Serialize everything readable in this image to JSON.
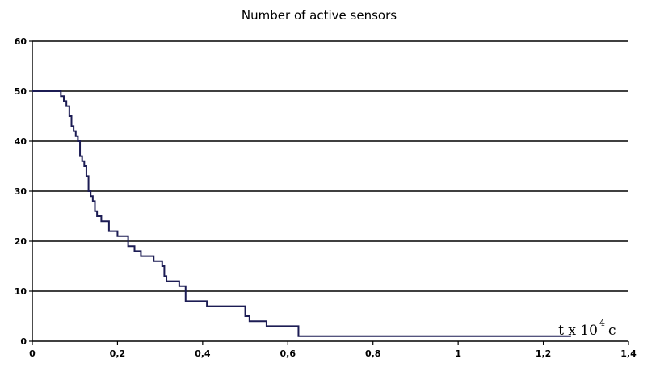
{
  "chart_data": {
    "type": "line",
    "title": "Number of active sensors",
    "xlabel": {
      "prefix": "t x 10",
      "superscript": "4",
      "suffix": "c"
    },
    "ylabel": "",
    "xlim": [
      0,
      1.4
    ],
    "ylim": [
      0,
      60
    ],
    "x_ticks": [
      "0",
      "0,2",
      "0,4",
      "0,6",
      "0,8",
      "1",
      "1,2",
      "1,4"
    ],
    "y_ticks": [
      "0",
      "10",
      "20",
      "30",
      "40",
      "50",
      "60"
    ],
    "grid": "horizontal",
    "line_color": "#1c1c54",
    "series": [
      {
        "step": "post",
        "x": [
          0,
          0.067,
          0.074,
          0.08,
          0.087,
          0.092,
          0.097,
          0.102,
          0.107,
          0.112,
          0.117,
          0.122,
          0.127,
          0.132,
          0.137,
          0.142,
          0.147,
          0.152,
          0.157,
          0.162,
          0.17,
          0.18,
          0.2,
          0.21,
          0.225,
          0.24,
          0.255,
          0.285,
          0.305,
          0.31,
          0.315,
          0.345,
          0.36,
          0.4,
          0.41,
          0.5,
          0.51,
          0.53,
          0.55,
          0.62,
          0.625,
          1.265
        ],
        "y": [
          50,
          49,
          48,
          47,
          45,
          43,
          42,
          41,
          40,
          37,
          36,
          35,
          33,
          30,
          29,
          28,
          26,
          25,
          25,
          24,
          24,
          22,
          21,
          21,
          19,
          18,
          17,
          16,
          15,
          13,
          12,
          11,
          8,
          8,
          7,
          5,
          4,
          4,
          3,
          3,
          1,
          1
        ]
      }
    ]
  }
}
